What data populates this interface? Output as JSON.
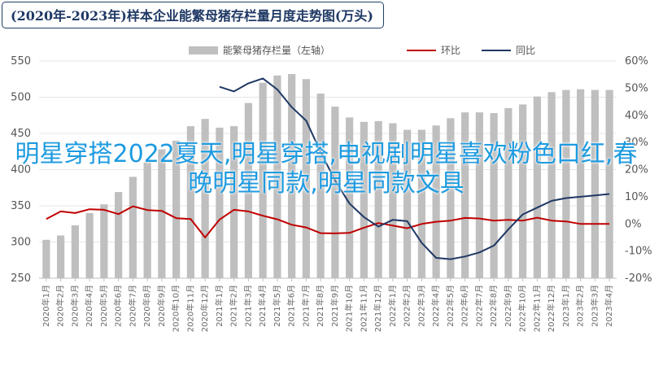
{
  "title": "(2020年-2023年)样本企业能繁母猪存栏量月度走势图(万头)",
  "overlay_text": "明星穿搭2022夏天,明星穿搭,电视剧明星喜欢粉色口红,春晚明星同款,明星同款文具",
  "chart_data": {
    "type": "bar+line",
    "categories": [
      "2020年1月",
      "2020年2月",
      "2020年3月",
      "2020年4月",
      "2020年5月",
      "2020年6月",
      "2020年7月",
      "2020年8月",
      "2020年9月",
      "2020年10月",
      "2020年11月",
      "2020年12月",
      "2021年1月",
      "2021年2月",
      "2021年3月",
      "2021年4月",
      "2021年5月",
      "2021年6月",
      "2021年7月",
      "2021年8月",
      "2021年9月",
      "2021年10月",
      "2021年11月",
      "2021年12月",
      "2022年1月",
      "2022年2月",
      "2022年3月",
      "2022年4月",
      "2022年5月",
      "2022年6月",
      "2022年7月",
      "2022年8月",
      "2022年9月",
      "2022年10月",
      "2022年11月",
      "2022年12月",
      "2023年1月",
      "2023年2月",
      "2023年3月",
      "2023年4月"
    ],
    "y_left": {
      "ylim": [
        250,
        550
      ],
      "ticks": [
        "250",
        "300",
        "350",
        "400",
        "450",
        "500",
        "550"
      ]
    },
    "y_right": {
      "ylim": [
        -20,
        60
      ],
      "ticks": [
        "-20%",
        "-10%",
        "0%",
        "10%",
        "20%",
        "30%",
        "40%",
        "50%",
        "60%"
      ]
    },
    "series": [
      {
        "name": "能繁母猪存栏量（左轴）",
        "type": "bar",
        "axis": "left",
        "color": "#bfbfbf",
        "values": [
          303,
          309,
          323,
          340,
          352,
          369,
          390,
          410,
          428,
          440,
          460,
          470,
          458,
          460,
          492,
          520,
          530,
          532,
          525,
          505,
          487,
          472,
          466,
          467,
          464,
          455,
          455,
          461,
          471,
          479,
          479,
          478,
          485,
          490,
          501,
          507,
          510,
          511,
          510,
          510
        ]
      },
      {
        "name": "环比",
        "type": "line",
        "axis": "right",
        "color": "#c00000",
        "values": [
          1.8,
          4.6,
          4.0,
          5.4,
          5.2,
          3.6,
          6.5,
          5.1,
          4.8,
          2.1,
          1.8,
          -5.0,
          1.6,
          5.2,
          4.6,
          3.0,
          1.7,
          -0.3,
          -1.3,
          -3.4,
          -3.5,
          -3.3,
          -1.4,
          0.3,
          -0.6,
          -1.6,
          0.0,
          0.8,
          1.2,
          2.2,
          2.0,
          1.2,
          1.5,
          1.2,
          2.3,
          1.2,
          0.9,
          0.0,
          0.0,
          0.0
        ]
      },
      {
        "name": "同比",
        "type": "line",
        "axis": "right",
        "color": "#1f3864",
        "values": [
          null,
          null,
          null,
          null,
          null,
          null,
          null,
          null,
          null,
          null,
          null,
          null,
          50.5,
          48.8,
          51.8,
          53.6,
          49.5,
          43.0,
          38.0,
          26.5,
          16.0,
          7.5,
          2.5,
          -1.0,
          1.5,
          1.0,
          -7.0,
          -12.5,
          -13.0,
          -12.0,
          -10.5,
          -8.0,
          -2.0,
          3.5,
          6.0,
          8.5,
          9.5,
          10.0,
          10.5,
          11.0
        ]
      }
    ]
  }
}
